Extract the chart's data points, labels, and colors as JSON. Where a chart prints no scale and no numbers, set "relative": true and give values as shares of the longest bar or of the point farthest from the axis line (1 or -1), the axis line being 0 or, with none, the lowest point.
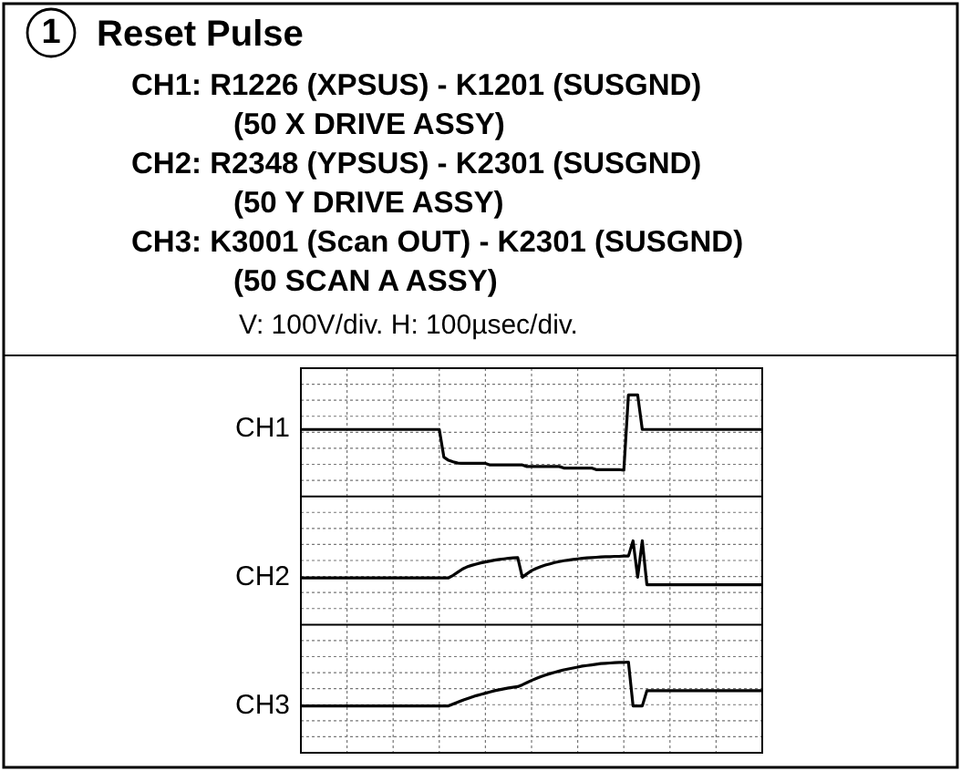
{
  "chart_data": {
    "type": "line",
    "title": "Reset Pulse",
    "subtitle": "V: 100V/div.   H: 100µsec/div.",
    "annotations": [
      "1",
      "CH1: R1226 (XPSUS) - K1201 (SUSGND)",
      "(50 X DRIVE ASSY)",
      "CH2: R2348 (YPSUS) - K2301 (SUSGND)",
      "(50 Y DRIVE ASSY)",
      "CH3: K3001 (Scan OUT) - K2301 (SUSGND)",
      "(50 SCAN A ASSY)"
    ],
    "relative": true,
    "grid": true,
    "ref_lines": [
      {
        "axis": "y",
        "value": 0.674,
        "color": "#000000"
      },
      {
        "axis": "y",
        "value": 0.261,
        "color": "#000000"
      }
    ],
    "categories": [
      null,
      null,
      null,
      null,
      null,
      null,
      null,
      null,
      null,
      null,
      null,
      null,
      null,
      null,
      null,
      null,
      null,
      null,
      null,
      null,
      null,
      null,
      null,
      null,
      null,
      null,
      null,
      null,
      null,
      null,
      null,
      null,
      null,
      null,
      null,
      null,
      null,
      null,
      null,
      null,
      null,
      null,
      null,
      null,
      null,
      null,
      null,
      null,
      null,
      null,
      null,
      null,
      null,
      null,
      null,
      null,
      null,
      null,
      null,
      null,
      null,
      null,
      null,
      null,
      null,
      null,
      null,
      null,
      null,
      null,
      null,
      null,
      null,
      null,
      null,
      null,
      null,
      null,
      null,
      null,
      null,
      null,
      null,
      null,
      null,
      null,
      null,
      null,
      null,
      null,
      null,
      null,
      null,
      null,
      null,
      null,
      null,
      null,
      null,
      null,
      null
    ],
    "series": [
      {
        "name": "CH1",
        "color": "#000000",
        "values": [
          0.889,
          0.889,
          0.889,
          0.889,
          0.889,
          0.889,
          0.889,
          0.889,
          0.889,
          0.889,
          0.889,
          0.889,
          0.889,
          0.889,
          0.889,
          0.889,
          0.889,
          0.889,
          0.889,
          0.889,
          0.889,
          0.889,
          0.889,
          0.889,
          0.889,
          0.889,
          0.889,
          0.889,
          0.889,
          0.889,
          0.889,
          0.8,
          0.79,
          0.785,
          0.781,
          0.78,
          0.78,
          0.78,
          0.78,
          0.78,
          0.78,
          0.775,
          0.775,
          0.775,
          0.775,
          0.775,
          0.775,
          0.775,
          0.775,
          0.77,
          0.77,
          0.77,
          0.77,
          0.77,
          0.77,
          0.77,
          0.77,
          0.765,
          0.765,
          0.765,
          0.765,
          0.765,
          0.765,
          0.765,
          0.76,
          0.76,
          0.76,
          0.76,
          0.76,
          0.76,
          0.758,
          1,
          1,
          1,
          0.889,
          0.889,
          0.889,
          0.889,
          0.889,
          0.889,
          0.889,
          0.889,
          0.889,
          0.889,
          0.889,
          0.889,
          0.889,
          0.889,
          0.889,
          0.889,
          0.889,
          0.889,
          0.889,
          0.889,
          0.889,
          0.889,
          0.889,
          0.889,
          0.889,
          0.889,
          0.889
        ]
      },
      {
        "name": "CH2",
        "color": "#000000",
        "values": [
          0.412,
          0.412,
          0.412,
          0.412,
          0.412,
          0.412,
          0.412,
          0.412,
          0.412,
          0.412,
          0.412,
          0.412,
          0.412,
          0.412,
          0.412,
          0.412,
          0.412,
          0.412,
          0.412,
          0.412,
          0.412,
          0.412,
          0.412,
          0.412,
          0.412,
          0.412,
          0.412,
          0.412,
          0.412,
          0.412,
          0.412,
          0.412,
          0.412,
          0.42,
          0.43,
          0.44,
          0.447,
          0.452,
          0.456,
          0.46,
          0.463,
          0.466,
          0.469,
          0.471,
          0.473,
          0.475,
          0.476,
          0.477,
          0.414,
          0.425,
          0.435,
          0.442,
          0.448,
          0.453,
          0.457,
          0.461,
          0.464,
          0.467,
          0.469,
          0.471,
          0.473,
          0.475,
          0.476,
          0.477,
          0.478,
          0.479,
          0.48,
          0.48,
          0.481,
          0.481,
          0.482,
          0.482,
          0.531,
          0.414,
          0.531,
          0.39,
          0.39,
          0.39,
          0.39,
          0.39,
          0.39,
          0.39,
          0.39,
          0.39,
          0.39,
          0.39,
          0.39,
          0.39,
          0.39,
          0.39,
          0.39,
          0.39,
          0.39,
          0.39,
          0.39,
          0.39,
          0.39,
          0.39,
          0.39,
          0.39,
          0.39
        ]
      },
      {
        "name": "CH3",
        "color": "#000000",
        "values": [
          0,
          0,
          0,
          0,
          0,
          0,
          0,
          0,
          0,
          0,
          0,
          0,
          0,
          0,
          0,
          0,
          0,
          0,
          0,
          0,
          0,
          0,
          0,
          0,
          0,
          0,
          0,
          0,
          0,
          0,
          0,
          0,
          0,
          0.006,
          0.012,
          0.018,
          0.023,
          0.028,
          0.033,
          0.037,
          0.041,
          0.045,
          0.049,
          0.052,
          0.055,
          0.058,
          0.06,
          0.062,
          0.068,
          0.075,
          0.082,
          0.088,
          0.094,
          0.099,
          0.104,
          0.108,
          0.112,
          0.116,
          0.119,
          0.122,
          0.125,
          0.128,
          0.13,
          0.132,
          0.134,
          0.136,
          0.137,
          0.138,
          0.139,
          0.14,
          0.14,
          0.141,
          0,
          0,
          0,
          0.049,
          0.049,
          0.049,
          0.049,
          0.049,
          0.049,
          0.049,
          0.049,
          0.049,
          0.049,
          0.049,
          0.049,
          0.049,
          0.049,
          0.049,
          0.049,
          0.049,
          0.049,
          0.049,
          0.049,
          0.049,
          0.049,
          0.049,
          0.049,
          0.049,
          0.049
        ]
      }
    ]
  }
}
